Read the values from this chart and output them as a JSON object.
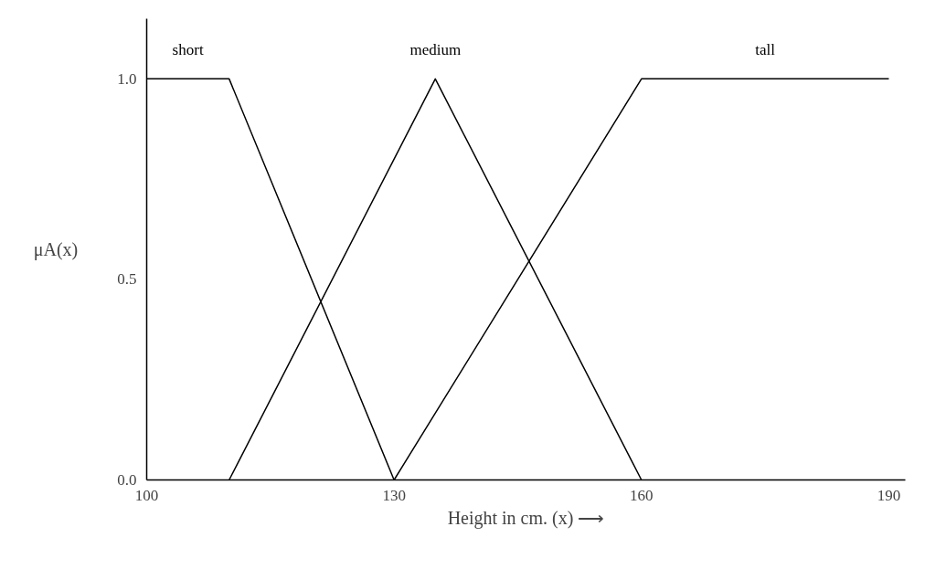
{
  "chart_data": {
    "type": "line",
    "xlabel": "Height in cm. (x) ⟶",
    "ylabel": "μA(x)",
    "series": [
      {
        "name": "short",
        "color": "#000000",
        "x": [
          100,
          110,
          130
        ],
        "values": [
          1,
          1,
          0
        ]
      },
      {
        "name": "medium",
        "color": "#000000",
        "x": [
          110,
          135,
          160
        ],
        "values": [
          0,
          1,
          0
        ]
      },
      {
        "name": "tall",
        "color": "#000000",
        "x": [
          130,
          160,
          190
        ],
        "values": [
          0,
          1,
          1
        ]
      }
    ],
    "xlim": [
      100,
      192
    ],
    "ylim": [
      0,
      1.15
    ],
    "xticks": [
      100,
      130,
      160,
      190
    ],
    "yticks": [
      {
        "value": 0,
        "label": "0.0"
      },
      {
        "value": 0.5,
        "label": "0.5"
      },
      {
        "value": 1,
        "label": "1.0"
      }
    ],
    "grid": false,
    "marker": "none",
    "line_style": "solid"
  }
}
